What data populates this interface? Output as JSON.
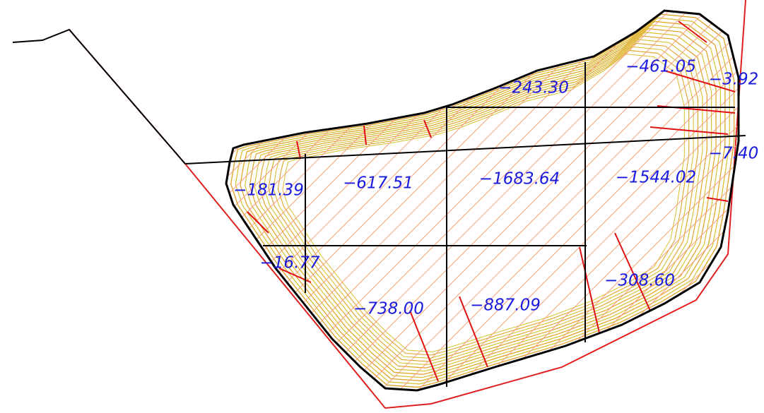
{
  "labels": [
    "−243.30",
    "−461.05",
    "−3.92",
    "−7.40",
    "−181.39",
    "−617.51",
    "−1683.64",
    "−1544.02",
    "−16.77",
    "−308.60",
    "−738.00",
    "−887.09"
  ]
}
